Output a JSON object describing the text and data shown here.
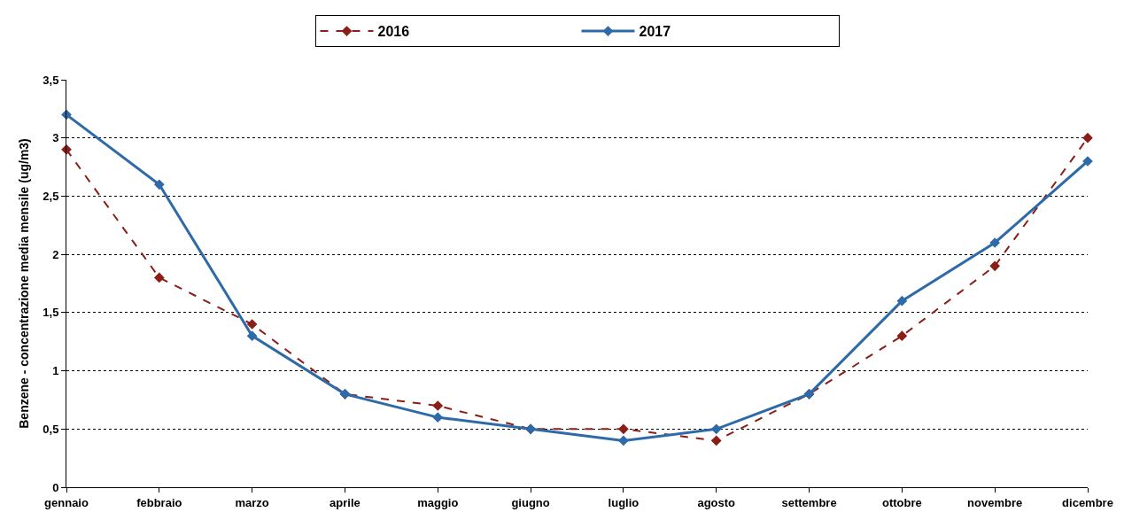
{
  "chart_data": {
    "type": "line",
    "ylabel": "Benzene - concentrazione media mensile (ug/m3)",
    "categories": [
      "gennaio",
      "febbraio",
      "marzo",
      "aprile",
      "maggio",
      "giugno",
      "luglio",
      "agosto",
      "settembre",
      "ottobre",
      "novembre",
      "dicembre"
    ],
    "series": [
      {
        "name": "2016",
        "color": "#8b1e16",
        "line_style": "dashed",
        "marker": "diamond",
        "values": [
          2.9,
          1.8,
          1.4,
          0.8,
          0.7,
          0.5,
          0.5,
          0.4,
          0.8,
          1.3,
          1.9,
          3.0
        ]
      },
      {
        "name": "2017",
        "color": "#2e6aa8",
        "line_style": "solid",
        "marker": "diamond",
        "values": [
          3.2,
          2.6,
          1.3,
          0.8,
          0.6,
          0.5,
          0.4,
          0.5,
          0.8,
          1.6,
          2.1,
          2.8
        ]
      }
    ],
    "ylim": [
      0,
      3.5
    ],
    "yticks": [
      0,
      {
        "value": 0.5,
        "label": "0,5"
      },
      1,
      {
        "value": 1.5,
        "label": "1,5"
      },
      2,
      {
        "value": 2.5,
        "label": "2,5"
      },
      3,
      {
        "value": 3.5,
        "label": "3,5"
      }
    ],
    "grid": "y",
    "legend": "top"
  }
}
